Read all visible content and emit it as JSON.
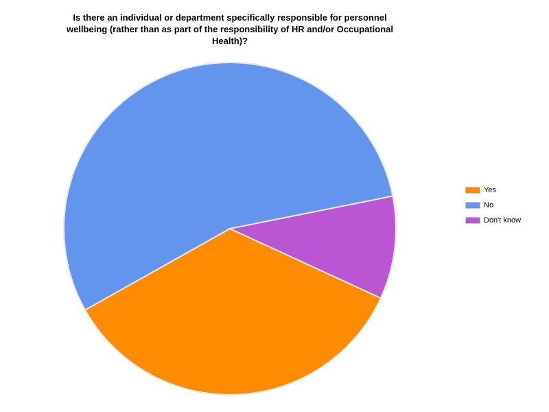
{
  "chart_data": {
    "type": "pie",
    "title_lines": [
      "Is there an individual or department specifically responsible for personnel",
      "wellbeing (rather than as part of the responsibility of HR and/or Occupational",
      "Health)?"
    ],
    "categories": [
      "Yes",
      "No",
      "Don't know"
    ],
    "values": [
      35,
      55,
      10
    ],
    "colors": [
      "#ff8c00",
      "#6495ed",
      "#ba55d3"
    ],
    "legend_position": "right",
    "slice_border_color": "#e8e8e8"
  }
}
